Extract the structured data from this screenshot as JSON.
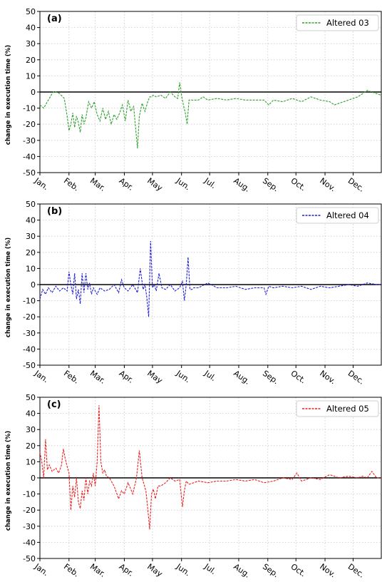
{
  "figure": {
    "background": "#ffffff"
  },
  "chart_data": [
    {
      "type": "line",
      "panel_label": "(a)",
      "ylabel": "change in execution time (%)",
      "xlabel": "",
      "ylim": [
        -50,
        50
      ],
      "yticks": [
        -50,
        -40,
        -30,
        -20,
        -10,
        0,
        10,
        20,
        30,
        40,
        50
      ],
      "x_unit": "day of year",
      "xlim": [
        1,
        365
      ],
      "month_ticks": [
        "Jan.",
        "Feb.",
        "Mar.",
        "Apr.",
        "May",
        "Jun.",
        "Jul.",
        "Aug.",
        "Sep.",
        "Oct.",
        "Nov.",
        "Dec."
      ],
      "month_tick_days": [
        1,
        32,
        60,
        91,
        121,
        152,
        182,
        213,
        244,
        274,
        305,
        335
      ],
      "grid": true,
      "zero_line": true,
      "legend": "top-right",
      "series": [
        {
          "name": "Altered 03",
          "color": "#2ca02c",
          "style": "dashed",
          "x": [
            1,
            5,
            9,
            12,
            15,
            18,
            22,
            27,
            30,
            32,
            34,
            36,
            38,
            40,
            42,
            44,
            46,
            48,
            50,
            53,
            56,
            59,
            62,
            65,
            68,
            71,
            74,
            77,
            80,
            83,
            86,
            89,
            92,
            95,
            98,
            101,
            103,
            105,
            107,
            110,
            113,
            116,
            118,
            120,
            122,
            125,
            130,
            135,
            140,
            145,
            148,
            150,
            152,
            154,
            156,
            158,
            160,
            165,
            170,
            175,
            180,
            190,
            200,
            210,
            220,
            230,
            240,
            245,
            250,
            260,
            270,
            280,
            290,
            300,
            310,
            315,
            320,
            330,
            340,
            345,
            350,
            355,
            360,
            365
          ],
          "y": [
            -8,
            -10,
            -6,
            -3,
            0,
            0,
            -1,
            -4,
            -15,
            -24,
            -20,
            -13,
            -22,
            -15,
            -19,
            -25,
            -14,
            -20,
            -16,
            -6,
            -10,
            -6,
            -14,
            -18,
            -10,
            -17,
            -12,
            -20,
            -14,
            -17,
            -13,
            -8,
            -18,
            -5,
            -12,
            -9,
            -22,
            -35,
            -15,
            -7,
            -12,
            -6,
            -3,
            -3,
            -2,
            -3,
            -2,
            -4,
            0,
            -3,
            -4,
            6,
            -2,
            -8,
            -13,
            -20,
            -5,
            -5,
            -5,
            -3,
            -5,
            -4,
            -5,
            -4,
            -5,
            -5,
            -5,
            -8,
            -5,
            -6,
            -4,
            -6,
            -3,
            -5,
            -6,
            -8,
            -7,
            -5,
            -3,
            -1,
            1,
            0,
            -1,
            -2
          ]
        }
      ]
    },
    {
      "type": "line",
      "panel_label": "(b)",
      "ylabel": "change in execution time (%)",
      "xlabel": "",
      "ylim": [
        -50,
        50
      ],
      "yticks": [
        -50,
        -40,
        -30,
        -20,
        -10,
        0,
        10,
        20,
        30,
        40,
        50
      ],
      "x_unit": "day of year",
      "xlim": [
        1,
        365
      ],
      "month_ticks": [
        "Jan.",
        "Feb.",
        "Mar.",
        "Apr.",
        "May",
        "Jun.",
        "Jul.",
        "Aug.",
        "Sep.",
        "Oct.",
        "Nov.",
        "Dec."
      ],
      "month_tick_days": [
        1,
        32,
        60,
        91,
        121,
        152,
        182,
        213,
        244,
        274,
        305,
        335
      ],
      "grid": true,
      "zero_line": true,
      "legend": "top-right",
      "series": [
        {
          "name": "Altered 04",
          "color": "#1f1fd6",
          "style": "dashed",
          "x": [
            1,
            4,
            7,
            10,
            14,
            18,
            22,
            26,
            30,
            32,
            34,
            36,
            38,
            40,
            42,
            44,
            46,
            48,
            50,
            52,
            54,
            56,
            58,
            60,
            62,
            65,
            70,
            75,
            80,
            85,
            88,
            91,
            95,
            100,
            105,
            108,
            111,
            113,
            115,
            117,
            119,
            121,
            123,
            125,
            128,
            131,
            135,
            140,
            145,
            150,
            153,
            155,
            157,
            159,
            161,
            163,
            165,
            170,
            180,
            190,
            200,
            210,
            220,
            230,
            240,
            242,
            245,
            250,
            260,
            270,
            280,
            290,
            300,
            310,
            320,
            330,
            340,
            350,
            360,
            365
          ],
          "y": [
            -9,
            -3,
            -6,
            -2,
            -5,
            -1,
            -4,
            -2,
            -4,
            8,
            0,
            -6,
            7,
            -9,
            -3,
            -12,
            7,
            -5,
            7,
            -3,
            1,
            -6,
            -2,
            -4,
            -6,
            -2,
            -4,
            -3,
            0,
            -5,
            3,
            -2,
            -4,
            0,
            -5,
            10,
            -3,
            0,
            -8,
            -20,
            27,
            -2,
            0,
            -4,
            7,
            -2,
            -3,
            0,
            -4,
            -2,
            2,
            -10,
            0,
            17,
            -3,
            -3,
            -2,
            -2,
            1,
            -2,
            -2,
            -1,
            -3,
            -2,
            -2,
            -6,
            -1,
            -2,
            -1,
            -2,
            -1,
            -3,
            -1,
            -2,
            -1,
            0,
            -1,
            1,
            0,
            0
          ]
        }
      ]
    },
    {
      "type": "line",
      "panel_label": "(c)",
      "ylabel": "change in execution time (%)",
      "xlabel": "",
      "ylim": [
        -50,
        50
      ],
      "yticks": [
        -50,
        -40,
        -30,
        -20,
        -10,
        0,
        10,
        20,
        30,
        40,
        50
      ],
      "x_unit": "day of year",
      "xlim": [
        1,
        365
      ],
      "month_ticks": [
        "Jan.",
        "Feb.",
        "Mar.",
        "Apr.",
        "May",
        "Jun.",
        "Jul.",
        "Aug.",
        "Sep.",
        "Oct.",
        "Nov.",
        "Dec."
      ],
      "month_tick_days": [
        1,
        32,
        60,
        91,
        121,
        152,
        182,
        213,
        244,
        274,
        305,
        335
      ],
      "grid": true,
      "zero_line": true,
      "legend": "top-right",
      "series": [
        {
          "name": "Altered 05",
          "color": "#e8211f",
          "style": "dashed",
          "x": [
            1,
            3,
            5,
            7,
            9,
            11,
            14,
            18,
            21,
            24,
            26,
            28,
            30,
            32,
            34,
            36,
            38,
            40,
            42,
            44,
            46,
            48,
            50,
            52,
            54,
            56,
            58,
            60,
            62,
            64,
            66,
            68,
            70,
            72,
            75,
            80,
            85,
            88,
            91,
            95,
            100,
            104,
            107,
            110,
            114,
            116,
            118,
            120,
            122,
            124,
            127,
            130,
            135,
            140,
            145,
            150,
            153,
            155,
            157,
            160,
            165,
            170,
            180,
            190,
            200,
            210,
            220,
            230,
            240,
            250,
            260,
            270,
            275,
            280,
            290,
            300,
            310,
            320,
            330,
            340,
            345,
            350,
            355,
            360,
            365
          ],
          "y": [
            16,
            10,
            0,
            24,
            5,
            8,
            4,
            6,
            3,
            8,
            18,
            12,
            7,
            3,
            -20,
            -5,
            -12,
            0,
            -15,
            -19,
            -8,
            -14,
            0,
            -10,
            -2,
            -5,
            3,
            -5,
            10,
            45,
            10,
            3,
            5,
            1,
            0,
            -5,
            -13,
            -8,
            -10,
            -3,
            -10,
            0,
            17,
            0,
            -8,
            -19,
            -32,
            -10,
            -7,
            -13,
            -5,
            -5,
            -3,
            0,
            -2,
            -1,
            -18,
            -8,
            -2,
            -4,
            -3,
            -2,
            -3,
            -2,
            -2,
            -1,
            -2,
            -1,
            -3,
            -2,
            0,
            -1,
            3,
            -2,
            0,
            -1,
            2,
            0,
            1,
            0,
            1,
            0,
            4,
            0,
            0
          ]
        }
      ]
    }
  ]
}
